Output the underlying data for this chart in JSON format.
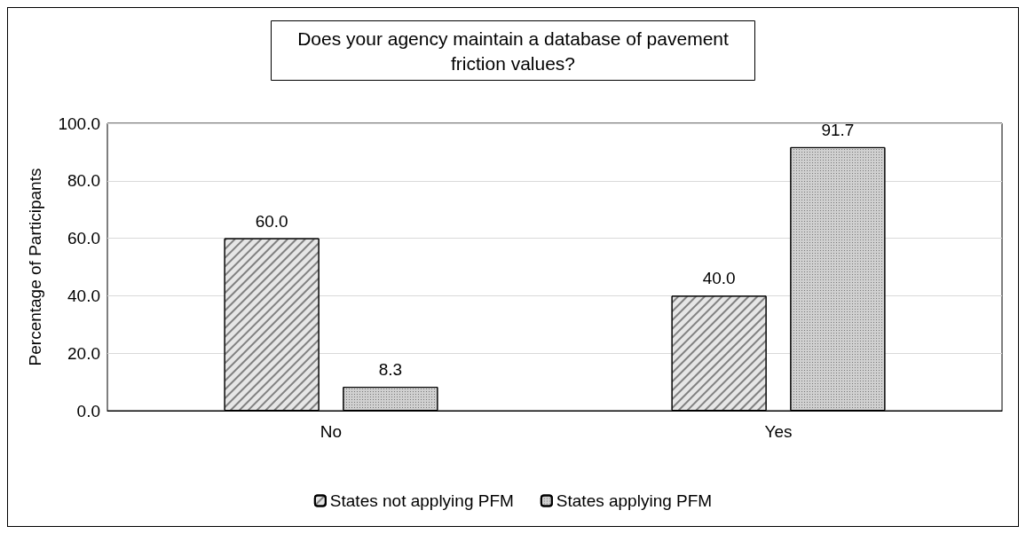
{
  "chart_data": {
    "type": "bar",
    "title": "Does your agency maintain a database of pavement\nfriction values?",
    "ylabel": "Percentage of Participants",
    "categories": [
      "No",
      "Yes"
    ],
    "series": [
      {
        "name": "States not applying PFM",
        "color": "#e6e6e6",
        "values": [
          60.0,
          40.0
        ],
        "value_labels": [
          "60.0",
          "40.0"
        ]
      },
      {
        "name": "States applying PFM",
        "color": "#d0d0d0",
        "values": [
          8.3,
          91.7
        ],
        "value_labels": [
          "8.3",
          "91.7"
        ]
      }
    ],
    "ylim": [
      0,
      100
    ],
    "yticks": [
      {
        "value": 0,
        "label": "0.0"
      },
      {
        "value": 20,
        "label": "20.0"
      },
      {
        "value": 40,
        "label": "40.0"
      },
      {
        "value": 60,
        "label": "60.0"
      },
      {
        "value": 80,
        "label": "80.0"
      },
      {
        "value": 100,
        "label": "100.0"
      }
    ],
    "grid": "y",
    "legend": "bottom"
  }
}
